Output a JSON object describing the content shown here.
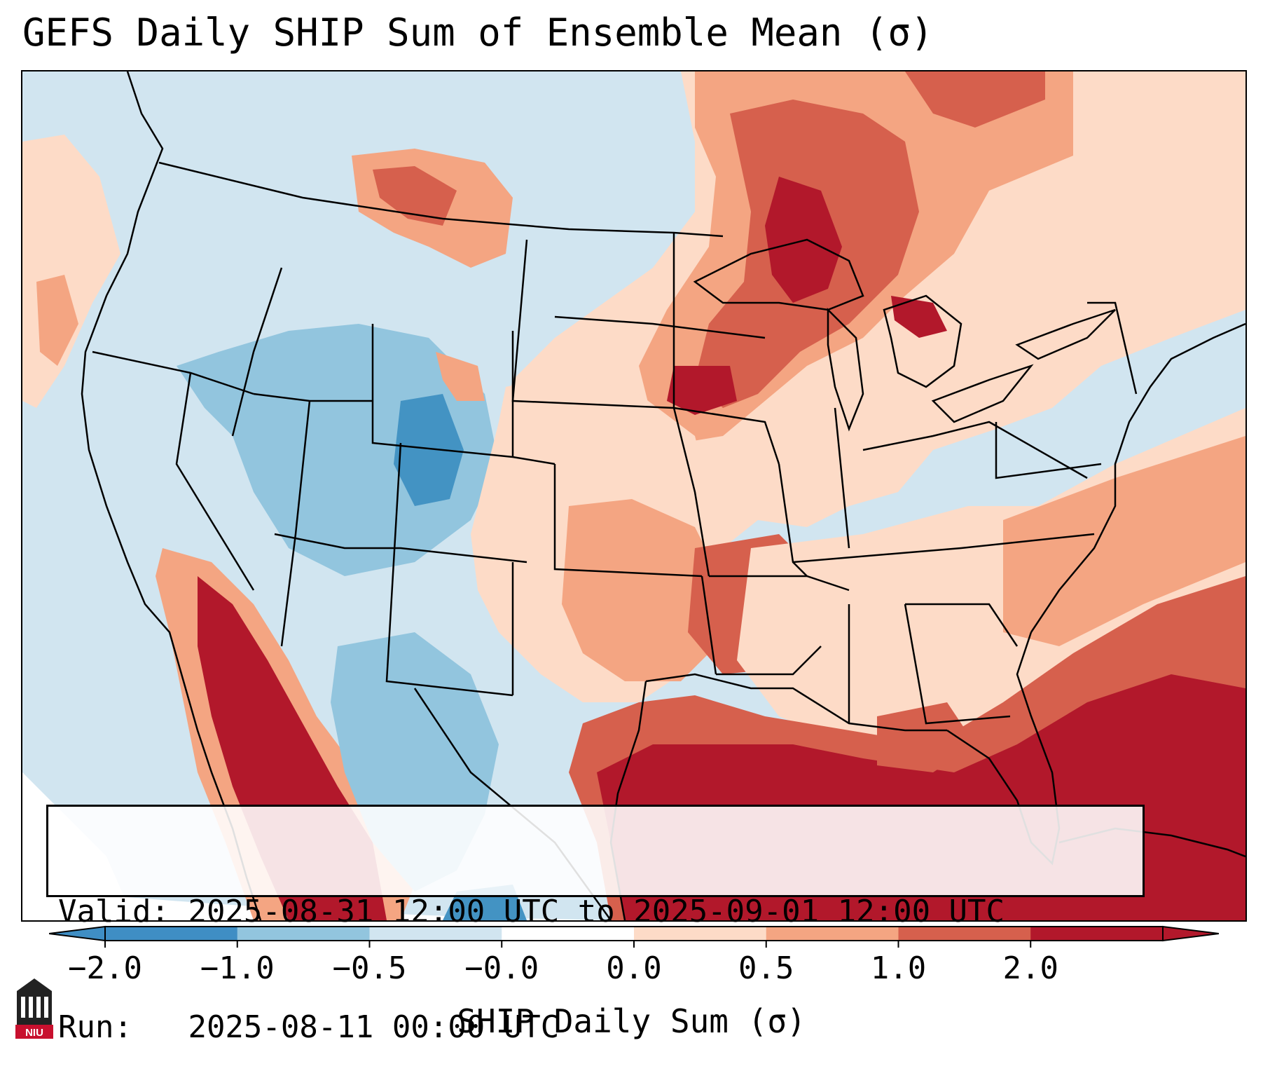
{
  "title": "GEFS Daily SHIP Sum of Ensemble Mean (σ)",
  "info": {
    "valid_label": "Valid:",
    "valid_value": "2025-08-31 12:00 UTC to 2025-09-01 12:00 UTC",
    "run_label": "Run:",
    "run_value": "2025-08-11 00:00 UTC"
  },
  "colorbar": {
    "label": "SHIP Daily Sum (σ)",
    "ticks": [
      "−2.0",
      "−1.0",
      "−0.5",
      "−0.0",
      "0.0",
      "0.5",
      "1.0",
      "2.0"
    ],
    "colors": [
      "#3f8ec4",
      "#92c5de",
      "#d1e5f0",
      "#ffffff",
      "#fddbc7",
      "#f4a582",
      "#d6604d",
      "#b2182b"
    ],
    "extend": "both"
  },
  "logo": {
    "text": "NIU"
  }
}
